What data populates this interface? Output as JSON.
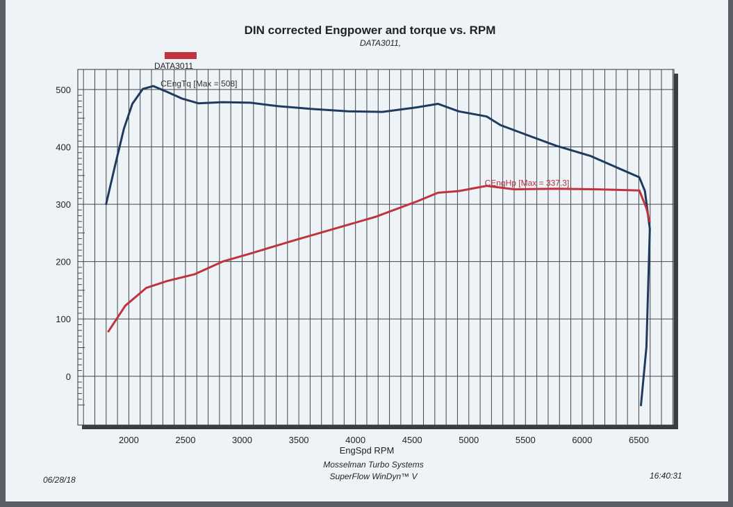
{
  "chart_data": {
    "type": "line",
    "title": "DIN corrected Engpower and torque vs. RPM",
    "subtitle": "DATA3011,",
    "legend": {
      "label": "DATA3011",
      "color": "#c0323e",
      "placement": "top-left"
    },
    "xlabel": "EngSpd RPM",
    "ylabel": "",
    "xlim": [
      1550,
      6810
    ],
    "ylim": [
      -85,
      535
    ],
    "x_ticks": [
      2000,
      2500,
      3000,
      3500,
      4000,
      4500,
      5000,
      5500,
      6000,
      6500
    ],
    "y_ticks": [
      0,
      100,
      200,
      300,
      400,
      500
    ],
    "grid": true,
    "series": [
      {
        "name": "CEngTq [Max = 508]",
        "color": "#1f3a5f",
        "points": [
          [
            1798,
            299
          ],
          [
            1877,
            366
          ],
          [
            1957,
            432
          ],
          [
            2031,
            475
          ],
          [
            2123,
            501
          ],
          [
            2215,
            506
          ],
          [
            2337,
            496
          ],
          [
            2472,
            484
          ],
          [
            2613,
            476
          ],
          [
            2828,
            478
          ],
          [
            3073,
            477
          ],
          [
            3318,
            471
          ],
          [
            3625,
            466
          ],
          [
            3931,
            462
          ],
          [
            4238,
            461
          ],
          [
            4544,
            469
          ],
          [
            4728,
            475
          ],
          [
            4911,
            462
          ],
          [
            5157,
            453
          ],
          [
            5279,
            438
          ],
          [
            5524,
            420
          ],
          [
            5770,
            402
          ],
          [
            6076,
            384
          ],
          [
            6260,
            368
          ],
          [
            6505,
            347
          ],
          [
            6554,
            323
          ],
          [
            6597,
            257
          ],
          [
            6567,
            51
          ],
          [
            6518,
            -52
          ]
        ]
      },
      {
        "name": "CEngHp [Max = 337.3]",
        "color": "#c0323e",
        "points": [
          [
            1816,
            77
          ],
          [
            1969,
            123
          ],
          [
            2153,
            154
          ],
          [
            2337,
            166
          ],
          [
            2582,
            178
          ],
          [
            2828,
            200
          ],
          [
            3073,
            214
          ],
          [
            3441,
            236
          ],
          [
            3809,
            257
          ],
          [
            4177,
            278
          ],
          [
            4544,
            305
          ],
          [
            4728,
            320
          ],
          [
            4911,
            323
          ],
          [
            5157,
            332
          ],
          [
            5402,
            326
          ],
          [
            5770,
            327
          ],
          [
            6138,
            326
          ],
          [
            6505,
            324
          ],
          [
            6567,
            293
          ],
          [
            6597,
            269
          ]
        ]
      }
    ]
  },
  "footer": {
    "company": "Mosselman Turbo Systems",
    "software": "SuperFlow WinDyn™ V",
    "date": "06/28/18",
    "time": "16:40:31"
  }
}
